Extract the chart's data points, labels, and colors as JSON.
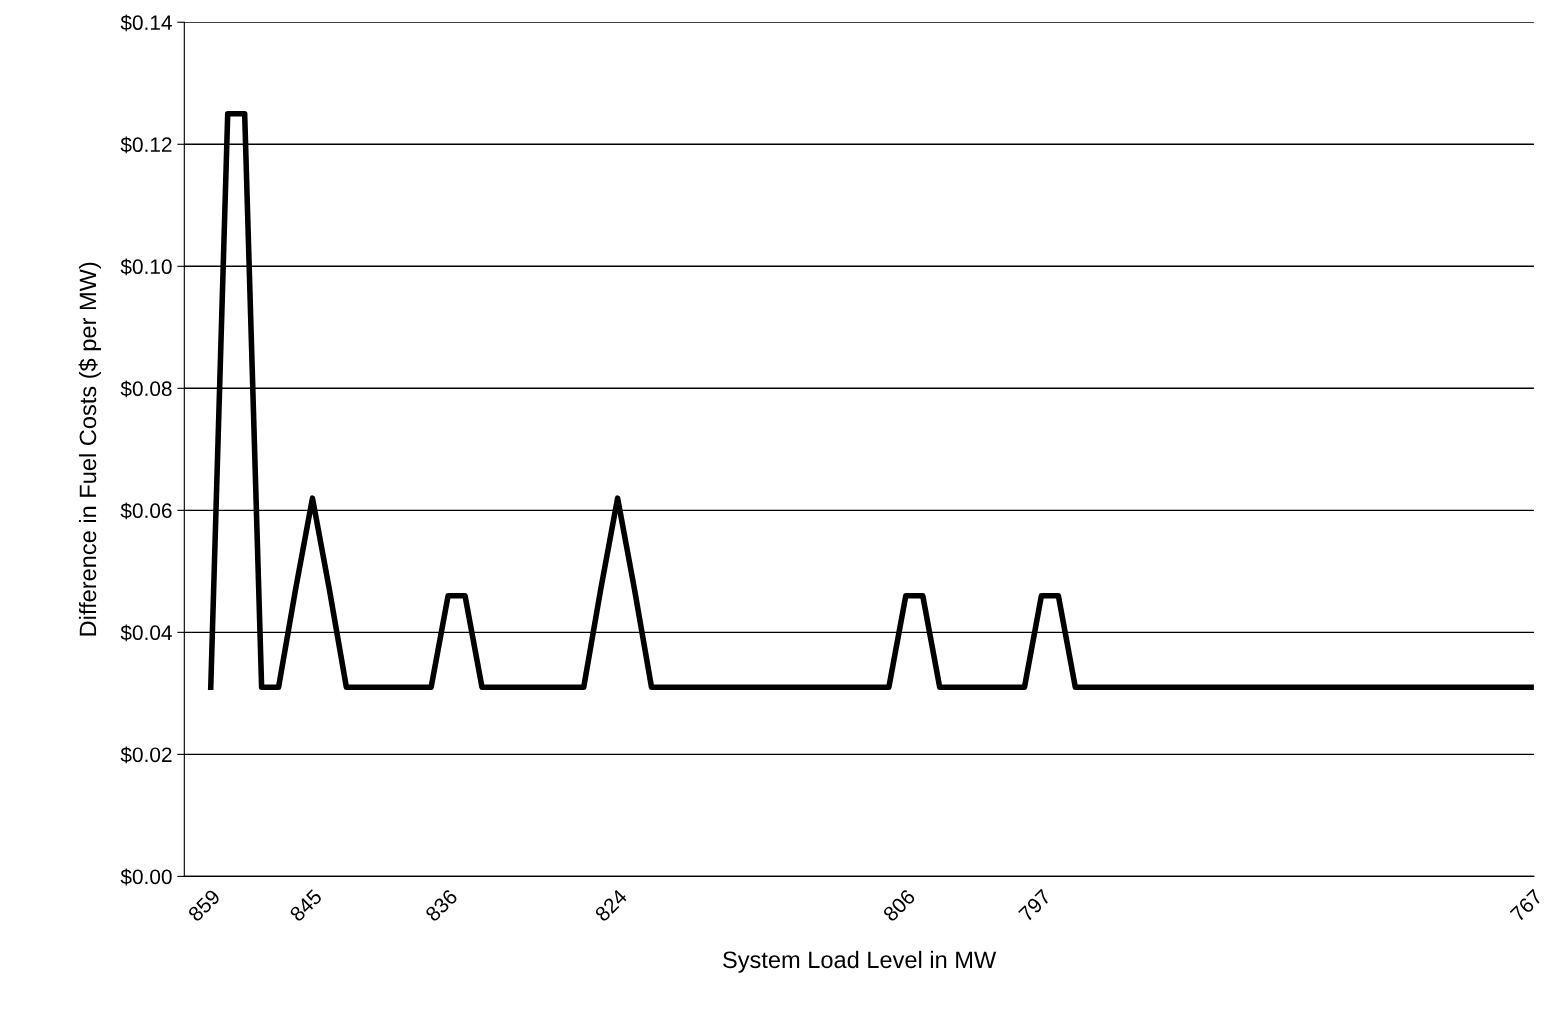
{
  "chart_data": {
    "type": "line",
    "xlabel": "System Load Level in MW",
    "ylabel": "Difference in Fuel Costs ($ per MW)",
    "categories": [
      "859",
      null,
      null,
      null,
      null,
      null,
      "845",
      null,
      null,
      null,
      null,
      null,
      null,
      null,
      "836",
      null,
      null,
      null,
      null,
      null,
      null,
      null,
      null,
      null,
      "824",
      null,
      null,
      null,
      null,
      null,
      null,
      null,
      null,
      null,
      null,
      null,
      null,
      null,
      null,
      null,
      null,
      "806",
      null,
      null,
      null,
      null,
      null,
      null,
      null,
      "797",
      null,
      null,
      null,
      null,
      null,
      null,
      null,
      null,
      null,
      null,
      null,
      null,
      null,
      null,
      null,
      null,
      null,
      null,
      null,
      null,
      null,
      null,
      null,
      null,
      null,
      null,
      null,
      null,
      "767"
    ],
    "series": [
      {
        "color": "#000000",
        "values": [
          0.031,
          0.125,
          0.125,
          0.031,
          0.031,
          0.047,
          0.062,
          0.047,
          0.031,
          0.031,
          0.031,
          0.031,
          0.031,
          0.031,
          0.046,
          0.046,
          0.031,
          0.031,
          0.031,
          0.031,
          0.031,
          0.031,
          0.031,
          0.047,
          0.062,
          0.047,
          0.031,
          0.031,
          0.031,
          0.031,
          0.031,
          0.031,
          0.031,
          0.031,
          0.031,
          0.031,
          0.031,
          0.031,
          0.031,
          0.031,
          0.031,
          0.046,
          0.046,
          0.031,
          0.031,
          0.031,
          0.031,
          0.031,
          0.031,
          0.046,
          0.046,
          0.031,
          0.031,
          0.031,
          0.031,
          0.031,
          0.031,
          0.031,
          0.031,
          0.031,
          0.031,
          0.031,
          0.031,
          0.031,
          0.031,
          0.031,
          0.031,
          0.031,
          0.031,
          0.031,
          0.031,
          0.031,
          0.031,
          0.031,
          0.031,
          0.031,
          0.031,
          0.031,
          0.031
        ]
      }
    ],
    "ylim": [
      0,
      0.14
    ],
    "yticks": [
      {
        "value": 0,
        "label": "$0.00"
      },
      {
        "value": 0.02,
        "label": "$0.02"
      },
      {
        "value": 0.04,
        "label": "$0.04"
      },
      {
        "value": 0.06,
        "label": "$0.06"
      },
      {
        "value": 0.08,
        "label": "$0.08"
      },
      {
        "value": 0.1,
        "label": "$0.10"
      },
      {
        "value": 0.12,
        "label": "$0.12"
      },
      {
        "value": 0.14,
        "label": "$0.14"
      }
    ],
    "grid": "y",
    "marker": "none",
    "line_style": "solid"
  }
}
